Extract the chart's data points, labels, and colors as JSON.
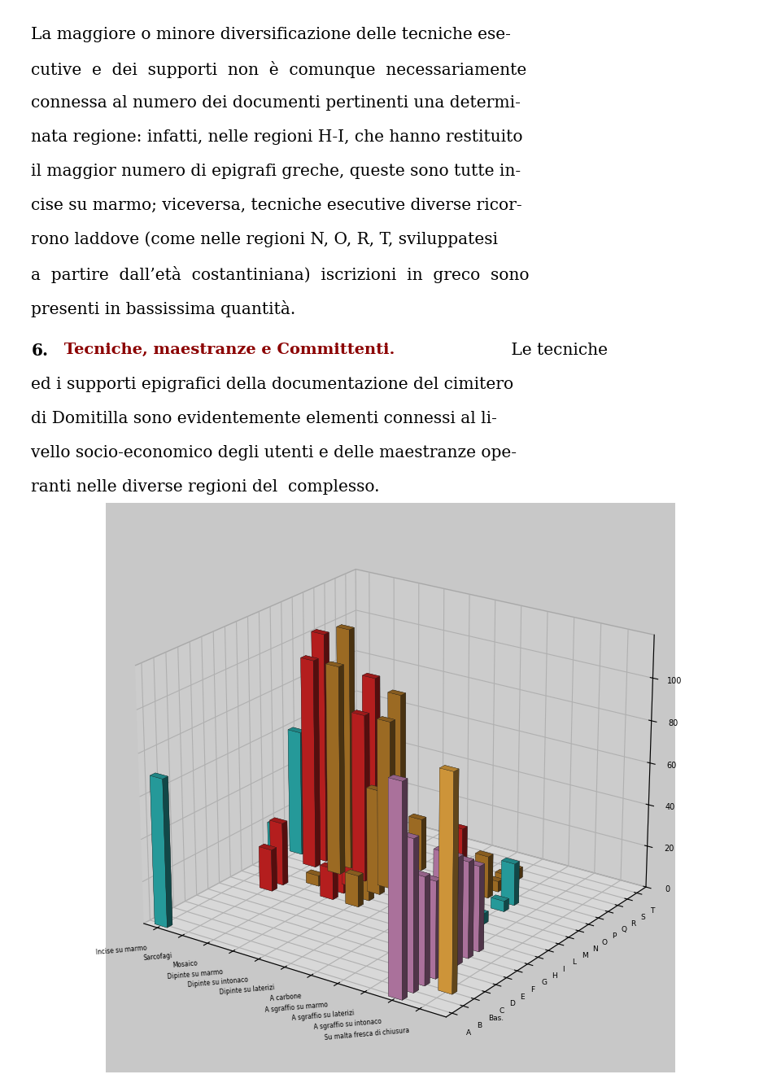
{
  "regions": [
    "A",
    "B",
    "Bas.",
    "C",
    "D",
    "E",
    "F",
    "G",
    "H",
    "I",
    "L",
    "M",
    "N",
    "O",
    "P",
    "Q",
    "R",
    "S",
    "T"
  ],
  "techniques": [
    "Incise su marmo",
    "Sarcofagi",
    "Mosaico",
    "Dipinte su marmo",
    "Dipinte su intonaco",
    "Dipinte su laterizi",
    "A carbone",
    "A sgraffio su marmo",
    "A sgraffio su laterizi",
    "A sgraffio su intonaco",
    "Su malta fresca di chiusura"
  ],
  "colors": [
    "#2AADAD",
    "#CC2222",
    "#B07828",
    "#CC2222",
    "#B07828",
    "#2AADAD",
    "#CC2222",
    "#B07828",
    "#2AADAD",
    "#C080B0",
    "#E8A840"
  ],
  "data": {
    "A": [
      70,
      0,
      0,
      0,
      0,
      0,
      0,
      0,
      0,
      98,
      0
    ],
    "B": [
      0,
      0,
      0,
      0,
      0,
      0,
      0,
      0,
      0,
      70,
      0
    ],
    "Bas.": [
      0,
      0,
      0,
      0,
      0,
      0,
      0,
      0,
      0,
      50,
      100
    ],
    "C": [
      0,
      0,
      0,
      0,
      0,
      0,
      0,
      0,
      0,
      45,
      0
    ],
    "D": [
      0,
      0,
      0,
      0,
      0,
      0,
      0,
      0,
      0,
      55,
      0
    ],
    "E": [
      0,
      0,
      0,
      0,
      0,
      0,
      0,
      10,
      0,
      50,
      0
    ],
    "F": [
      0,
      0,
      0,
      0,
      0,
      0,
      0,
      10,
      0,
      45,
      0
    ],
    "G": [
      0,
      20,
      0,
      0,
      0,
      0,
      0,
      10,
      0,
      40,
      0
    ],
    "H": [
      0,
      30,
      0,
      15,
      15,
      0,
      15,
      5,
      5,
      0,
      0
    ],
    "I": [
      0,
      0,
      5,
      10,
      15,
      0,
      10,
      0,
      5,
      0,
      0
    ],
    "L": [
      20,
      0,
      0,
      50,
      50,
      5,
      5,
      0,
      5,
      0,
      0
    ],
    "M": [
      0,
      100,
      100,
      80,
      80,
      0,
      5,
      0,
      0,
      0,
      0
    ],
    "N": [
      60,
      110,
      115,
      95,
      90,
      5,
      0,
      0,
      5,
      0,
      0
    ],
    "O": [
      50,
      0,
      0,
      0,
      0,
      0,
      30,
      20,
      20,
      0,
      0
    ],
    "P": [
      5,
      30,
      30,
      20,
      25,
      10,
      5,
      5,
      0,
      0,
      0
    ],
    "Q": [
      0,
      35,
      0,
      0,
      0,
      0,
      5,
      5,
      0,
      0,
      0
    ],
    "R": [
      5,
      25,
      0,
      0,
      0,
      0,
      0,
      5,
      0,
      0,
      0
    ],
    "S": [
      5,
      10,
      0,
      0,
      0,
      0,
      0,
      0,
      0,
      0,
      0
    ],
    "T": [
      5,
      5,
      0,
      0,
      0,
      0,
      0,
      0,
      0,
      0,
      0
    ]
  },
  "yticks": [
    0,
    20,
    40,
    60,
    80,
    100
  ],
  "ymax": 120,
  "bg_color": "#ffffff",
  "chart_floor_color": "#c8c8c8",
  "chart_wall_color": "#e0e0e0",
  "p1_lines": [
    "La maggiore o minore diversificazione delle tecniche ese-",
    "cutive  e  dei  supporti  non  è  comunque  necessariamente",
    "connessa al numero dei documenti pertinenti una determi-",
    "nata regione: infatti, nelle regioni H-I, che hanno restituito",
    "il maggior numero di epigrafi greche, queste sono tutte in-",
    "cise su marmo; viceversa, tecniche esecutive diverse ricor-",
    "rono laddove (come nelle regioni N, O, R, T, sviluppatesi",
    "a  partire  dall’età  costantiniana)  iscrizioni  in  greco  sono",
    "presenti in bassissima quantità."
  ],
  "p2_heading_num": "6.",
  "p2_heading_title": " Tecniche, maestranze e Committenti.",
  "p2_rest_lines": [
    " Le tecniche",
    "ed i supporti epigrafici della documentazione del cimitero",
    "di Domitilla sono evidentemente elementi connessi al li-",
    "vello socio-economico degli utenti e delle maestranze ope-",
    "ranti nelle diverse regioni del  complesso."
  ],
  "font_size": 14.5,
  "heading_color": "#8B0000"
}
